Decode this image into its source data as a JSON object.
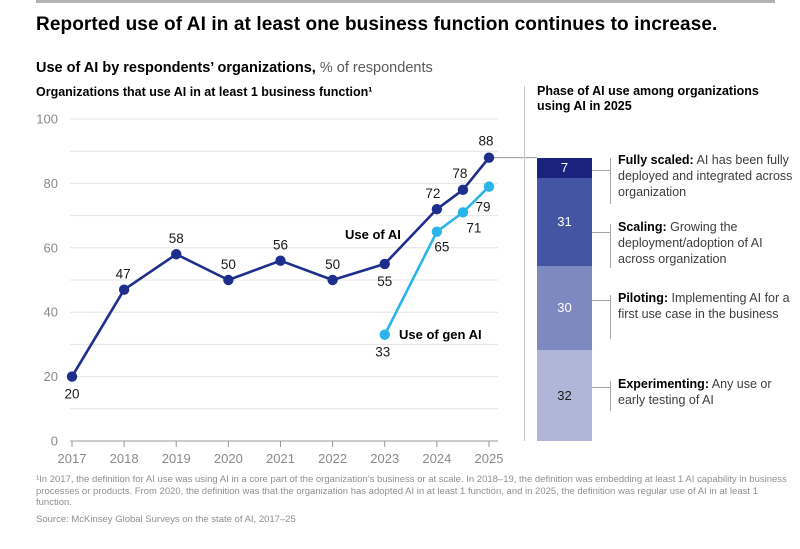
{
  "title": "Reported use of AI in at least one business function continues to increase.",
  "subtitle": {
    "bold": "Use of AI by respondents’ organizations,",
    "rest": " % of respondents"
  },
  "chart_data": [
    {
      "type": "line",
      "title": "Organizations that use AI in at least 1 business function¹",
      "x_tick_labels": [
        "2017",
        "2018",
        "2019",
        "2020",
        "2021",
        "2022",
        "2023",
        "2024",
        "2025"
      ],
      "ylim": [
        0,
        100
      ],
      "y_tick_labels": [
        0,
        20,
        40,
        60,
        80,
        100
      ],
      "grid": "horizontal every 10, legend labels placed inline",
      "series": [
        {
          "name": "Use of AI",
          "color": "#1d2e8c",
          "x": [
            2017,
            2018,
            2019,
            2020,
            2021,
            2022,
            2023,
            2024,
            2024.5,
            2025
          ],
          "values": [
            20,
            47,
            58,
            50,
            56,
            50,
            55,
            72,
            78,
            88
          ]
        },
        {
          "name": "Use of gen AI",
          "color": "#2bb4e9",
          "x": [
            2023,
            2024,
            2024.5,
            2025
          ],
          "values": [
            33,
            65,
            71,
            79
          ]
        }
      ]
    },
    {
      "type": "bar",
      "stacked": true,
      "title": "Phase of AI use among organizations using AI in 2025",
      "segments": [
        {
          "value": 7,
          "color": "#19227d",
          "text_color": "#ffffff",
          "term": "Fully scaled:",
          "desc": " AI has been fully deployed and integrated across organization"
        },
        {
          "value": 31,
          "color": "#4456a3",
          "text_color": "#ffffff",
          "term": "Scaling:",
          "desc": " Growing the deployment/adoption of AI across organization"
        },
        {
          "value": 30,
          "color": "#7e89c2",
          "text_color": "#ffffff",
          "term": "Piloting:",
          "desc": " Implementing AI for a first use case in the business"
        },
        {
          "value": 32,
          "color": "#afb6d8",
          "text_color": "#1a1a1a",
          "term": "Experimenting:",
          "desc": " Any use or early testing of AI"
        }
      ]
    }
  ],
  "footnote": "¹In 2017, the definition for AI use was using AI in a core part of the organization’s business or at scale. In 2018–19, the definition was embedding at least 1 AI capability in business processes or products. From 2020, the definition was that the organization has adopted AI in at least 1 function, and in 2025, the definition was regular use of AI in at least 1 function.",
  "source": "Source: McKinsey Global Surveys on the state of AI, 2017–25"
}
